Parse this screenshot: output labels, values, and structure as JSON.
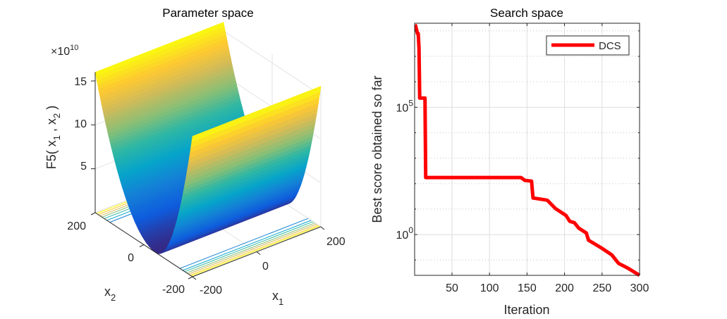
{
  "chart_data": [
    {
      "type": "surface",
      "title": "Parameter space",
      "zlabel_text": "F5( x",
      "zlabel_sub1": "1",
      "zlabel_mid": " , x",
      "zlabel_sub2": "2",
      "zlabel_end": " )",
      "xlabel_base": "x",
      "xlabel_sub": "1",
      "ylabel_base": "x",
      "ylabel_sub": "2",
      "z_exponent_prefix": "×10",
      "z_exponent": "10",
      "x1_ticks": [
        "-200",
        "0",
        "200"
      ],
      "x2_ticks": [
        "200",
        "0",
        "-200"
      ],
      "z_ticks": [
        "5",
        "10",
        "15"
      ],
      "x1_range": [
        -200,
        200
      ],
      "x2_range": [
        -200,
        200
      ],
      "z_range_e10": [
        0,
        16
      ],
      "colormap": "parula",
      "contour_on_floor": true
    },
    {
      "type": "line",
      "title": "Search space",
      "xlabel": "Iteration",
      "ylabel": "Best score obtained so far",
      "yscale": "log",
      "xlim": [
        1,
        300
      ],
      "ylim": [
        0.025,
        200000000.0
      ],
      "grid": true,
      "legend_position": "top-right",
      "x_ticks": [
        "50",
        "100",
        "150",
        "200",
        "250",
        "300"
      ],
      "y_ticks": [
        {
          "base": "10",
          "exp": "0",
          "value": 1
        },
        {
          "base": "10",
          "exp": "5",
          "value": 100000
        }
      ],
      "series": [
        {
          "name": "DCS",
          "color": "#ff0000",
          "x": [
            1,
            4,
            5,
            6,
            7,
            14,
            15,
            142,
            147,
            156,
            158,
            177,
            188,
            202,
            207,
            213,
            219,
            229,
            232,
            249,
            263,
            272,
            285,
            300
          ],
          "y": [
            180000000.0,
            79000000.0,
            79000000.0,
            22000000.0,
            230000.0,
            230000.0,
            174,
            174,
            135,
            126,
            27.5,
            22.4,
            10.5,
            5.6,
            3.3,
            2.95,
            1.78,
            1.15,
            0.6,
            0.3,
            0.16,
            0.074,
            0.047,
            0.025
          ]
        }
      ]
    }
  ]
}
